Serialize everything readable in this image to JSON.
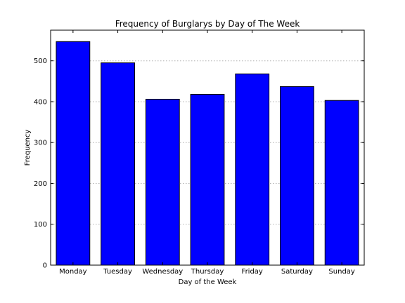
{
  "chart_data": {
    "type": "bar",
    "title": "Frequency of Burglarys by Day of The Week",
    "xlabel": "Day of the Week",
    "ylabel": "Frequency",
    "categories": [
      "Monday",
      "Tuesday",
      "Wednesday",
      "Thursday",
      "Friday",
      "Saturday",
      "Sunday"
    ],
    "values": [
      547,
      495,
      406,
      418,
      468,
      437,
      403
    ],
    "ylim": [
      0,
      575
    ],
    "yticks": [
      0,
      100,
      200,
      300,
      400,
      500
    ],
    "grid": "horizontal dotted",
    "bar_color": "#0000ff"
  }
}
